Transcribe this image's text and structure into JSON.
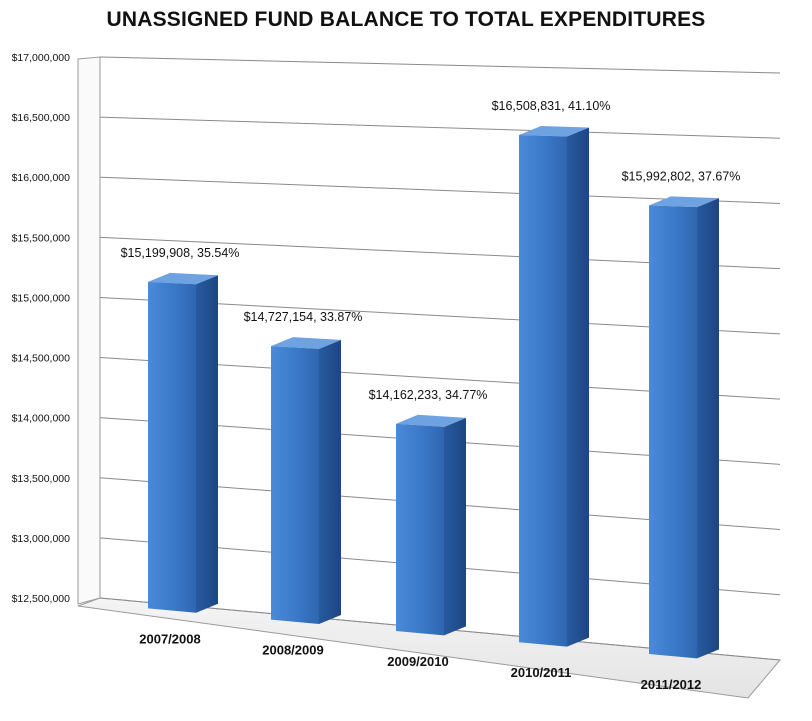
{
  "chart_data": {
    "type": "bar",
    "title": "UNASSIGNED FUND BALANCE TO TOTAL EXPENDITURES",
    "categories": [
      "2007/2008",
      "2008/2009",
      "2009/2010",
      "2010/2011",
      "2011/2012"
    ],
    "values": [
      15199908,
      14727154,
      14162233,
      16508831,
      15992802
    ],
    "data_labels": [
      "$15,199,908, 35.54%",
      "$14,727,154, 33.87%",
      "$14,162,233, 34.77%",
      "$16,508,831, 41.10%",
      "$15,992,802, 37.67%"
    ],
    "ylim": [
      12500000,
      17000000
    ],
    "y_ticks": [
      12500000,
      13000000,
      13500000,
      14000000,
      14500000,
      15000000,
      15500000,
      16000000,
      16500000,
      17000000
    ],
    "y_tick_labels": [
      "$12,500,000",
      "$13,000,000",
      "$13,500,000",
      "$14,000,000",
      "$14,500,000",
      "$15,000,000",
      "$15,500,000",
      "$16,000,000",
      "$16,500,000",
      "$17,000,000"
    ],
    "grid": true,
    "legend": "none",
    "style": "3d-column",
    "colors": {
      "bar_front": "#3a78c8",
      "bar_side": "#23508f",
      "bar_top": "#6fa2e0",
      "grid": "#8a8a8a"
    }
  }
}
